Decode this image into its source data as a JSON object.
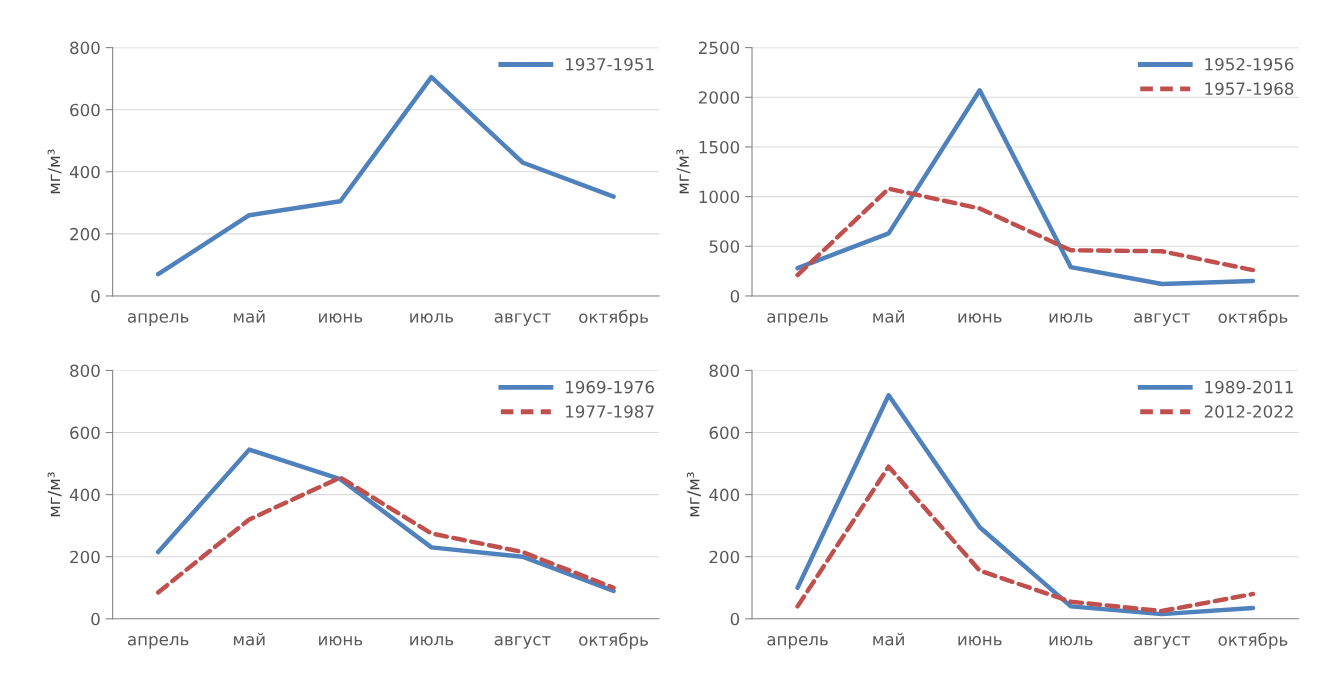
{
  "chart_data": [
    {
      "type": "line",
      "ylabel": "мг/м³",
      "categories": [
        "апрель",
        "май",
        "июнь",
        "июль",
        "август",
        "октябрь"
      ],
      "ylim": [
        0,
        800
      ],
      "yticks": [
        0,
        200,
        400,
        600,
        800
      ],
      "grid": "y",
      "legend": "top right",
      "line_style": "solid",
      "series": [
        {
          "name": "1937-1951",
          "color": "#4f81bd",
          "values": [
            70,
            260,
            305,
            705,
            430,
            320
          ]
        }
      ]
    },
    {
      "type": "line",
      "ylabel": "мг/м³",
      "categories": [
        "апрель",
        "май",
        "июнь",
        "июль",
        "август",
        "октябрь"
      ],
      "ylim": [
        0,
        2500
      ],
      "yticks": [
        0,
        500,
        1000,
        1500,
        2000,
        2500
      ],
      "grid": "y",
      "legend": "top right",
      "series": [
        {
          "name": "1952-1956",
          "color": "#4f81bd",
          "line_style": "solid",
          "values": [
            280,
            630,
            2070,
            290,
            120,
            150
          ]
        },
        {
          "name": "1957-1968",
          "color": "#c0504d",
          "line_style": "dashed",
          "values": [
            210,
            1080,
            880,
            460,
            450,
            260
          ]
        }
      ]
    },
    {
      "type": "line",
      "ylabel": "мг/м³",
      "categories": [
        "апрель",
        "май",
        "июнь",
        "июль",
        "август",
        "октябрь"
      ],
      "ylim": [
        0,
        800
      ],
      "yticks": [
        0,
        200,
        400,
        600,
        800
      ],
      "grid": "y",
      "legend": "top right",
      "series": [
        {
          "name": "1969-1976",
          "color": "#4f81bd",
          "line_style": "solid",
          "values": [
            215,
            545,
            450,
            230,
            200,
            90
          ]
        },
        {
          "name": "1977-1987",
          "color": "#c0504d",
          "line_style": "dashed",
          "values": [
            85,
            320,
            455,
            275,
            215,
            100
          ]
        }
      ]
    },
    {
      "type": "line",
      "ylabel": "мг/м³",
      "categories": [
        "апрель",
        "май",
        "июнь",
        "июль",
        "август",
        "октябрь"
      ],
      "ylim": [
        0,
        800
      ],
      "yticks": [
        0,
        200,
        400,
        600,
        800
      ],
      "grid": "y",
      "legend": "top right",
      "series": [
        {
          "name": "1989-2011",
          "color": "#4f81bd",
          "line_style": "solid",
          "values": [
            100,
            720,
            295,
            40,
            15,
            35
          ]
        },
        {
          "name": "2012-2022",
          "color": "#c0504d",
          "line_style": "dashed",
          "values": [
            40,
            490,
            155,
            55,
            25,
            80
          ]
        }
      ]
    }
  ]
}
